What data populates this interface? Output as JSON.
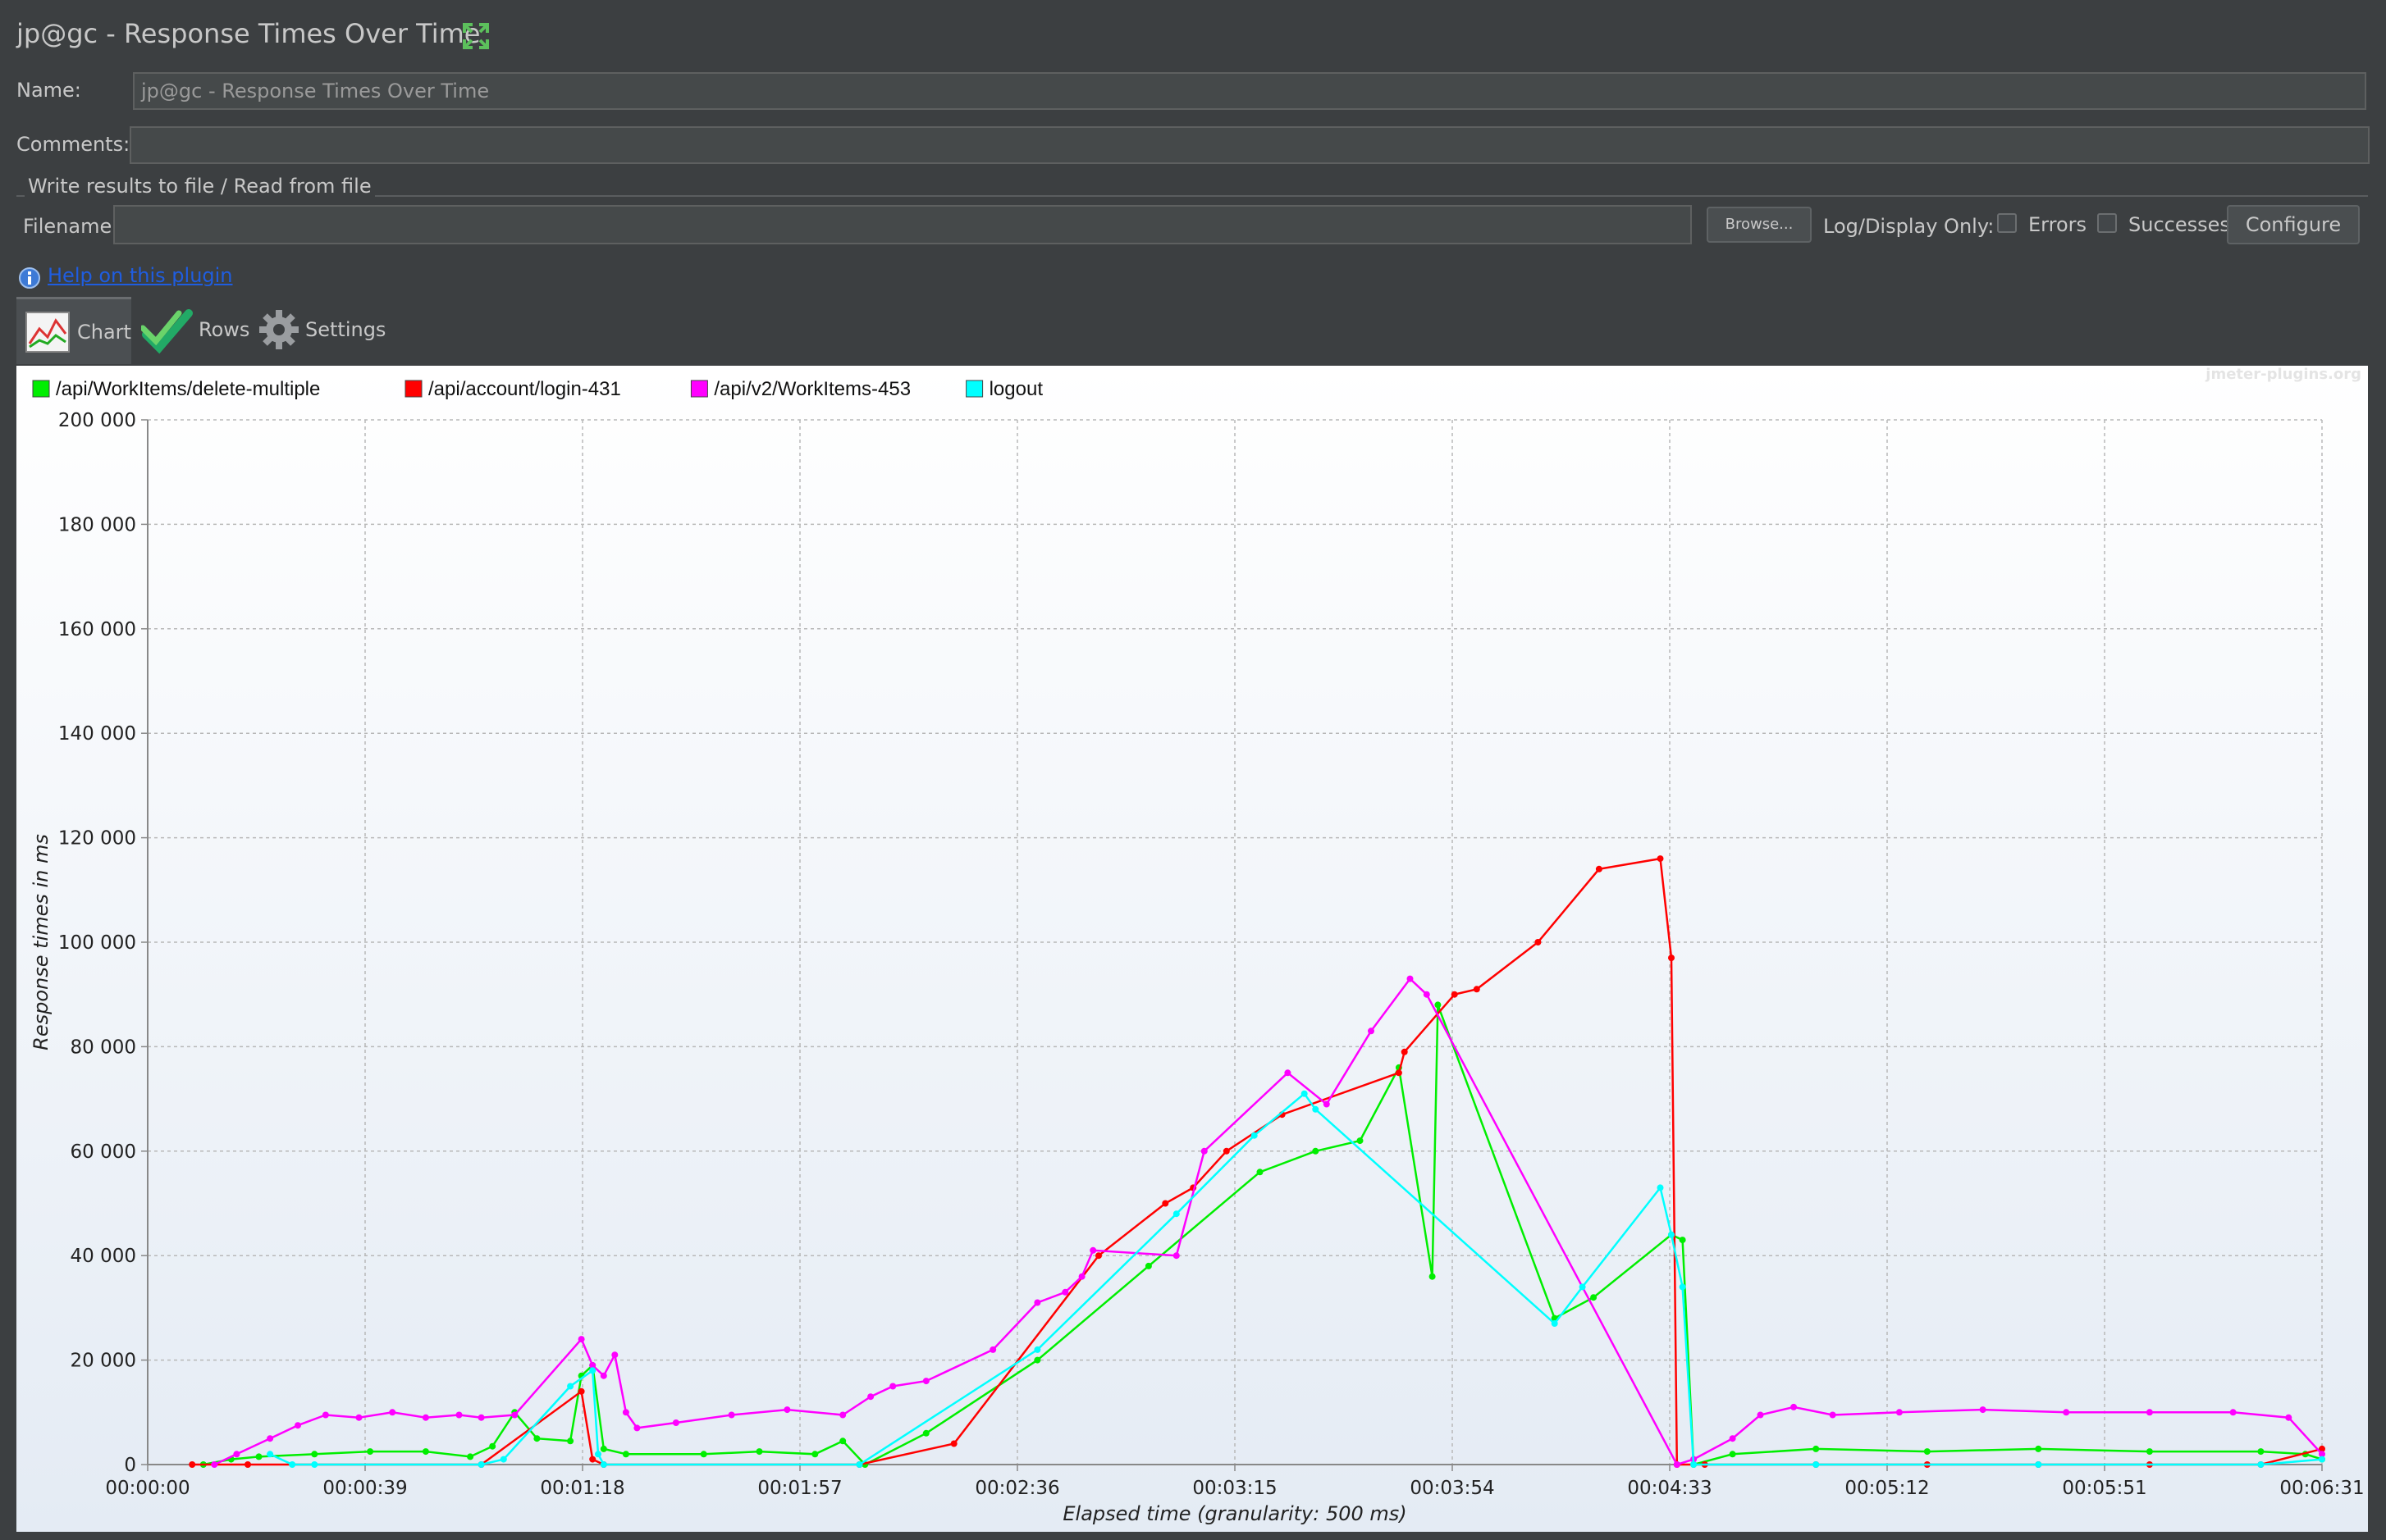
{
  "window": {
    "title": "jp@gc - Response Times Over Time"
  },
  "form": {
    "name_label": "Name:",
    "name_value": "jp@gc - Response Times Over Time",
    "comments_label": "Comments:",
    "comments_value": "",
    "group_title": "Write results to file / Read from file",
    "filename_label": "Filename",
    "filename_value": "",
    "browse_label": "Browse...",
    "log_display_label": "Log/Display Only:",
    "errors_label": "Errors",
    "errors_checked": false,
    "successes_label": "Successes",
    "successes_checked": false,
    "configure_label": "Configure"
  },
  "help": {
    "icon": "info-icon",
    "link_text": "Help on this plugin"
  },
  "tabs": [
    {
      "label": "Chart",
      "icon": "chart-icon",
      "active": true
    },
    {
      "label": "Rows",
      "icon": "check-icon",
      "active": false
    },
    {
      "label": "Settings",
      "icon": "gear-icon",
      "active": false
    }
  ],
  "watermark": "jmeter-plugins.org",
  "chart_data": {
    "type": "line",
    "xlabel": "Elapsed time (granularity: 500 ms)",
    "ylabel": "Response times in ms",
    "x_unit": "seconds",
    "xlim": [
      0,
      391
    ],
    "ylim": [
      0,
      200000
    ],
    "x_ticks": [
      "00:00:00",
      "00:00:39",
      "00:01:18",
      "00:01:57",
      "00:02:36",
      "00:03:15",
      "00:03:54",
      "00:04:33",
      "00:05:12",
      "00:05:51",
      "00:06:31"
    ],
    "y_ticks": [
      "0",
      "20 000",
      "40 000",
      "60 000",
      "80 000",
      "100 000",
      "120 000",
      "140 000",
      "160 000",
      "180 000",
      "200 000"
    ],
    "grid": true,
    "legend_position": "top-left",
    "series": [
      {
        "name": "/api/WorkItems/delete-multiple",
        "color": "#00ee00",
        "points": [
          [
            10,
            0
          ],
          [
            15,
            1000
          ],
          [
            20,
            1500
          ],
          [
            30,
            2000
          ],
          [
            40,
            2500
          ],
          [
            50,
            2500
          ],
          [
            58,
            1500
          ],
          [
            62,
            3500
          ],
          [
            66,
            10000
          ],
          [
            70,
            5000
          ],
          [
            76,
            4500
          ],
          [
            78,
            17000
          ],
          [
            80,
            19000
          ],
          [
            82,
            3000
          ],
          [
            86,
            2000
          ],
          [
            100,
            2000
          ],
          [
            110,
            2500
          ],
          [
            120,
            2000
          ],
          [
            125,
            4500
          ],
          [
            129,
            0
          ],
          [
            140,
            6000
          ],
          [
            160,
            20000
          ],
          [
            180,
            38000
          ],
          [
            200,
            56000
          ],
          [
            210,
            60000
          ],
          [
            218,
            62000
          ],
          [
            225,
            76000
          ],
          [
            231,
            36000
          ],
          [
            232,
            88000
          ],
          [
            253,
            28000
          ],
          [
            260,
            32000
          ],
          [
            274,
            44000
          ],
          [
            276,
            43000
          ],
          [
            278,
            0
          ],
          [
            285,
            2000
          ],
          [
            300,
            3000
          ],
          [
            320,
            2500
          ],
          [
            340,
            3000
          ],
          [
            360,
            2500
          ],
          [
            380,
            2500
          ],
          [
            388,
            2000
          ],
          [
            391,
            1000
          ]
        ]
      },
      {
        "name": "/api/account/login-431",
        "color": "#ff0000",
        "points": [
          [
            8,
            0
          ],
          [
            18,
            0
          ],
          [
            60,
            0
          ],
          [
            78,
            14000
          ],
          [
            80,
            1000
          ],
          [
            82,
            0
          ],
          [
            128,
            0
          ],
          [
            145,
            4000
          ],
          [
            171,
            40000
          ],
          [
            183,
            50000
          ],
          [
            188,
            53000
          ],
          [
            194,
            60000
          ],
          [
            204,
            67000
          ],
          [
            225,
            75000
          ],
          [
            226,
            79000
          ],
          [
            235,
            90000
          ],
          [
            239,
            91000
          ],
          [
            250,
            100000
          ],
          [
            261,
            114000
          ],
          [
            272,
            116000
          ],
          [
            274,
            97000
          ],
          [
            275,
            0
          ],
          [
            280,
            0
          ],
          [
            300,
            0
          ],
          [
            320,
            0
          ],
          [
            340,
            0
          ],
          [
            360,
            0
          ],
          [
            380,
            0
          ],
          [
            391,
            3000
          ]
        ]
      },
      {
        "name": "/api/v2/WorkItems-453",
        "color": "#ff00ff",
        "points": [
          [
            12,
            0
          ],
          [
            16,
            2000
          ],
          [
            22,
            5000
          ],
          [
            27,
            7500
          ],
          [
            32,
            9500
          ],
          [
            38,
            9000
          ],
          [
            44,
            10000
          ],
          [
            50,
            9000
          ],
          [
            56,
            9500
          ],
          [
            60,
            9000
          ],
          [
            66,
            9500
          ],
          [
            78,
            24000
          ],
          [
            80,
            19000
          ],
          [
            82,
            17000
          ],
          [
            84,
            21000
          ],
          [
            86,
            10000
          ],
          [
            88,
            7000
          ],
          [
            95,
            8000
          ],
          [
            105,
            9500
          ],
          [
            115,
            10500
          ],
          [
            125,
            9500
          ],
          [
            130,
            13000
          ],
          [
            134,
            15000
          ],
          [
            140,
            16000
          ],
          [
            152,
            22000
          ],
          [
            160,
            31000
          ],
          [
            165,
            33000
          ],
          [
            168,
            36000
          ],
          [
            170,
            41000
          ],
          [
            185,
            40000
          ],
          [
            190,
            60000
          ],
          [
            205,
            75000
          ],
          [
            212,
            69000
          ],
          [
            220,
            83000
          ],
          [
            227,
            93000
          ],
          [
            230,
            90000
          ],
          [
            275,
            0
          ],
          [
            278,
            1000
          ],
          [
            285,
            5000
          ],
          [
            290,
            9500
          ],
          [
            296,
            11000
          ],
          [
            303,
            9500
          ],
          [
            315,
            10000
          ],
          [
            330,
            10500
          ],
          [
            345,
            10000
          ],
          [
            360,
            10000
          ],
          [
            375,
            10000
          ],
          [
            385,
            9000
          ],
          [
            391,
            2000
          ]
        ]
      },
      {
        "name": "logout",
        "color": "#00ffff",
        "points": [
          [
            22,
            2000
          ],
          [
            26,
            0
          ],
          [
            30,
            0
          ],
          [
            60,
            0
          ],
          [
            64,
            1000
          ],
          [
            76,
            15000
          ],
          [
            80,
            18000
          ],
          [
            81,
            2000
          ],
          [
            82,
            0
          ],
          [
            128,
            0
          ],
          [
            160,
            22000
          ],
          [
            185,
            48000
          ],
          [
            199,
            63000
          ],
          [
            208,
            71000
          ],
          [
            210,
            68000
          ],
          [
            253,
            27000
          ],
          [
            258,
            34000
          ],
          [
            272,
            53000
          ],
          [
            274,
            44000
          ],
          [
            276,
            34000
          ],
          [
            278,
            0
          ],
          [
            300,
            0
          ],
          [
            340,
            0
          ],
          [
            380,
            0
          ],
          [
            391,
            1000
          ]
        ]
      }
    ]
  }
}
